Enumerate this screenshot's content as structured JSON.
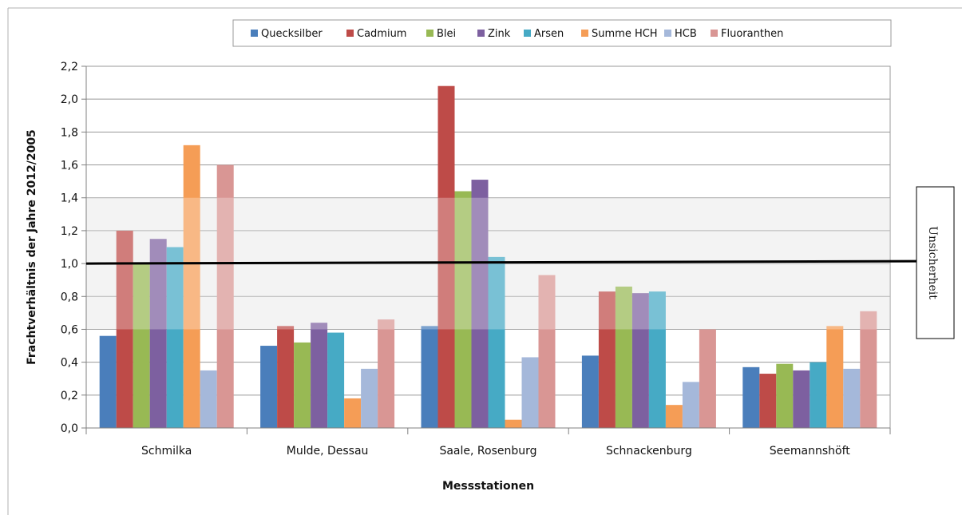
{
  "chart_data": {
    "type": "bar",
    "title": "",
    "xlabel": "Messstationen",
    "ylabel": "Frachtverhältnis der Jahre 2012/2005",
    "ylim": [
      0,
      2.2
    ],
    "yticks": [
      "0,0",
      "0,2",
      "0,4",
      "0,6",
      "0,8",
      "1,0",
      "1,2",
      "1,4",
      "1,6",
      "1,8",
      "2,0",
      "2,2"
    ],
    "grid": true,
    "legend_position": "top",
    "categories": [
      "Schmilka",
      "Mulde, Dessau",
      "Saale, Rosenburg",
      "Schnackenburg",
      "Seemannshöft"
    ],
    "series": [
      {
        "name": "Quecksilber",
        "color": "#4a7ebb",
        "values": [
          0.56,
          0.5,
          0.62,
          0.44,
          0.37
        ]
      },
      {
        "name": "Cadmium",
        "color": "#be4b48",
        "values": [
          1.2,
          0.62,
          2.08,
          0.83,
          0.33
        ]
      },
      {
        "name": "Blei",
        "color": "#98b954",
        "values": [
          1.0,
          0.52,
          1.44,
          0.86,
          0.39
        ]
      },
      {
        "name": "Zink",
        "color": "#7d60a0",
        "values": [
          1.15,
          0.64,
          1.51,
          0.82,
          0.35
        ]
      },
      {
        "name": "Arsen",
        "color": "#46aac5",
        "values": [
          1.1,
          0.58,
          1.04,
          0.83,
          0.4
        ]
      },
      {
        "name": "Summe HCH",
        "color": "#f59d56",
        "values": [
          1.72,
          0.18,
          0.05,
          0.14,
          0.62
        ]
      },
      {
        "name": "HCB",
        "color": "#a5b8da",
        "values": [
          0.35,
          0.36,
          0.43,
          0.28,
          0.36
        ]
      },
      {
        "name": "Fluoranthen",
        "color": "#d99694",
        "values": [
          1.6,
          0.66,
          0.93,
          0.6,
          0.71
        ]
      }
    ],
    "uncertainty_band": {
      "label": "Unsicherheit",
      "from": 0.6,
      "to": 1.4,
      "reference": 1.0
    }
  }
}
